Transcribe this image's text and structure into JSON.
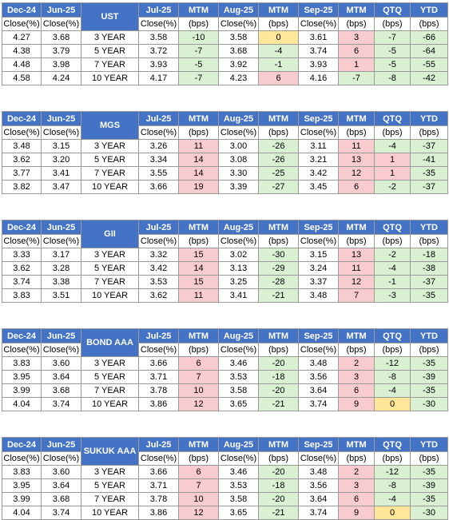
{
  "header": {
    "dec": "Dec-24",
    "jun": "Jun-25",
    "jul": "Jul-25",
    "aug": "Aug-25",
    "sep": "Sep-25",
    "mtm": "MTM",
    "qtq": "QTQ",
    "ytd": "YTD",
    "close": "Close(%)",
    "bps": "(bps)"
  },
  "colors": {
    "header_bg": "#4472c4",
    "positive_bg": "#f8cbcf",
    "negative_bg": "#d9f0d3",
    "zero_bg": "#ffe699"
  },
  "tables": [
    {
      "title": "UST",
      "rows": [
        [
          "4.27",
          "3.68",
          "3 YEAR",
          "3.58",
          "-10",
          "3.58",
          "0",
          "3.61",
          "3",
          "-7",
          "-66"
        ],
        [
          "4.38",
          "3.79",
          "5 YEAR",
          "3.72",
          "-7",
          "3.68",
          "-4",
          "3.74",
          "6",
          "-5",
          "-64"
        ],
        [
          "4.48",
          "3.98",
          "7 YEAR",
          "3.93",
          "-5",
          "3.92",
          "-1",
          "3.93",
          "1",
          "-5",
          "-55"
        ],
        [
          "4.58",
          "4.24",
          "10 YEAR",
          "4.17",
          "-7",
          "4.23",
          "6",
          "4.16",
          "-7",
          "-8",
          "-42"
        ]
      ]
    },
    {
      "title": "MGS",
      "rows": [
        [
          "3.48",
          "3.15",
          "3 YEAR",
          "3.26",
          "11",
          "3.00",
          "-26",
          "3.11",
          "11",
          "-4",
          "-37"
        ],
        [
          "3.62",
          "3.20",
          "5 YEAR",
          "3.34",
          "14",
          "3.08",
          "-26",
          "3.21",
          "13",
          "1",
          "-41"
        ],
        [
          "3.77",
          "3.41",
          "7 YEAR",
          "3.55",
          "14",
          "3.30",
          "-25",
          "3.42",
          "12",
          "1",
          "-35"
        ],
        [
          "3.82",
          "3.47",
          "10 YEAR",
          "3.66",
          "19",
          "3.39",
          "-27",
          "3.45",
          "6",
          "-2",
          "-37"
        ]
      ]
    },
    {
      "title": "GII",
      "rows": [
        [
          "3.33",
          "3.17",
          "3 YEAR",
          "3.32",
          "15",
          "3.02",
          "-30",
          "3.15",
          "13",
          "-2",
          "-18"
        ],
        [
          "3.62",
          "3.28",
          "5 YEAR",
          "3.42",
          "14",
          "3.13",
          "-29",
          "3.24",
          "11",
          "-4",
          "-38"
        ],
        [
          "3.74",
          "3.38",
          "7 YEAR",
          "3.53",
          "15",
          "3.25",
          "-28",
          "3.37",
          "12",
          "-1",
          "-37"
        ],
        [
          "3.83",
          "3.51",
          "10 YEAR",
          "3.62",
          "11",
          "3.41",
          "-21",
          "3.48",
          "7",
          "-3",
          "-35"
        ]
      ]
    },
    {
      "title": "BOND AAA",
      "rows": [
        [
          "3.83",
          "3.60",
          "3 YEAR",
          "3.66",
          "6",
          "3.46",
          "-20",
          "3.48",
          "2",
          "-12",
          "-35"
        ],
        [
          "3.95",
          "3.64",
          "5 YEAR",
          "3.71",
          "7",
          "3.53",
          "-18",
          "3.56",
          "3",
          "-8",
          "-39"
        ],
        [
          "3.99",
          "3.68",
          "7 YEAR",
          "3.78",
          "10",
          "3.58",
          "-20",
          "3.64",
          "6",
          "-4",
          "-35"
        ],
        [
          "4.04",
          "3.74",
          "10 YEAR",
          "3.86",
          "12",
          "3.65",
          "-21",
          "3.74",
          "9",
          "0",
          "-30"
        ]
      ]
    },
    {
      "title": "SUKUK AAA",
      "rows": [
        [
          "3.83",
          "3.60",
          "3 YEAR",
          "3.66",
          "6",
          "3.46",
          "-20",
          "3.48",
          "2",
          "-12",
          "-35"
        ],
        [
          "3.95",
          "3.64",
          "5 YEAR",
          "3.71",
          "7",
          "3.53",
          "-18",
          "3.56",
          "3",
          "-8",
          "-39"
        ],
        [
          "3.99",
          "3.68",
          "7 YEAR",
          "3.78",
          "10",
          "3.58",
          "-20",
          "3.64",
          "6",
          "-4",
          "-35"
        ],
        [
          "4.04",
          "3.74",
          "10 YEAR",
          "3.86",
          "12",
          "3.65",
          "-21",
          "3.74",
          "9",
          "0",
          "-30"
        ]
      ]
    }
  ]
}
